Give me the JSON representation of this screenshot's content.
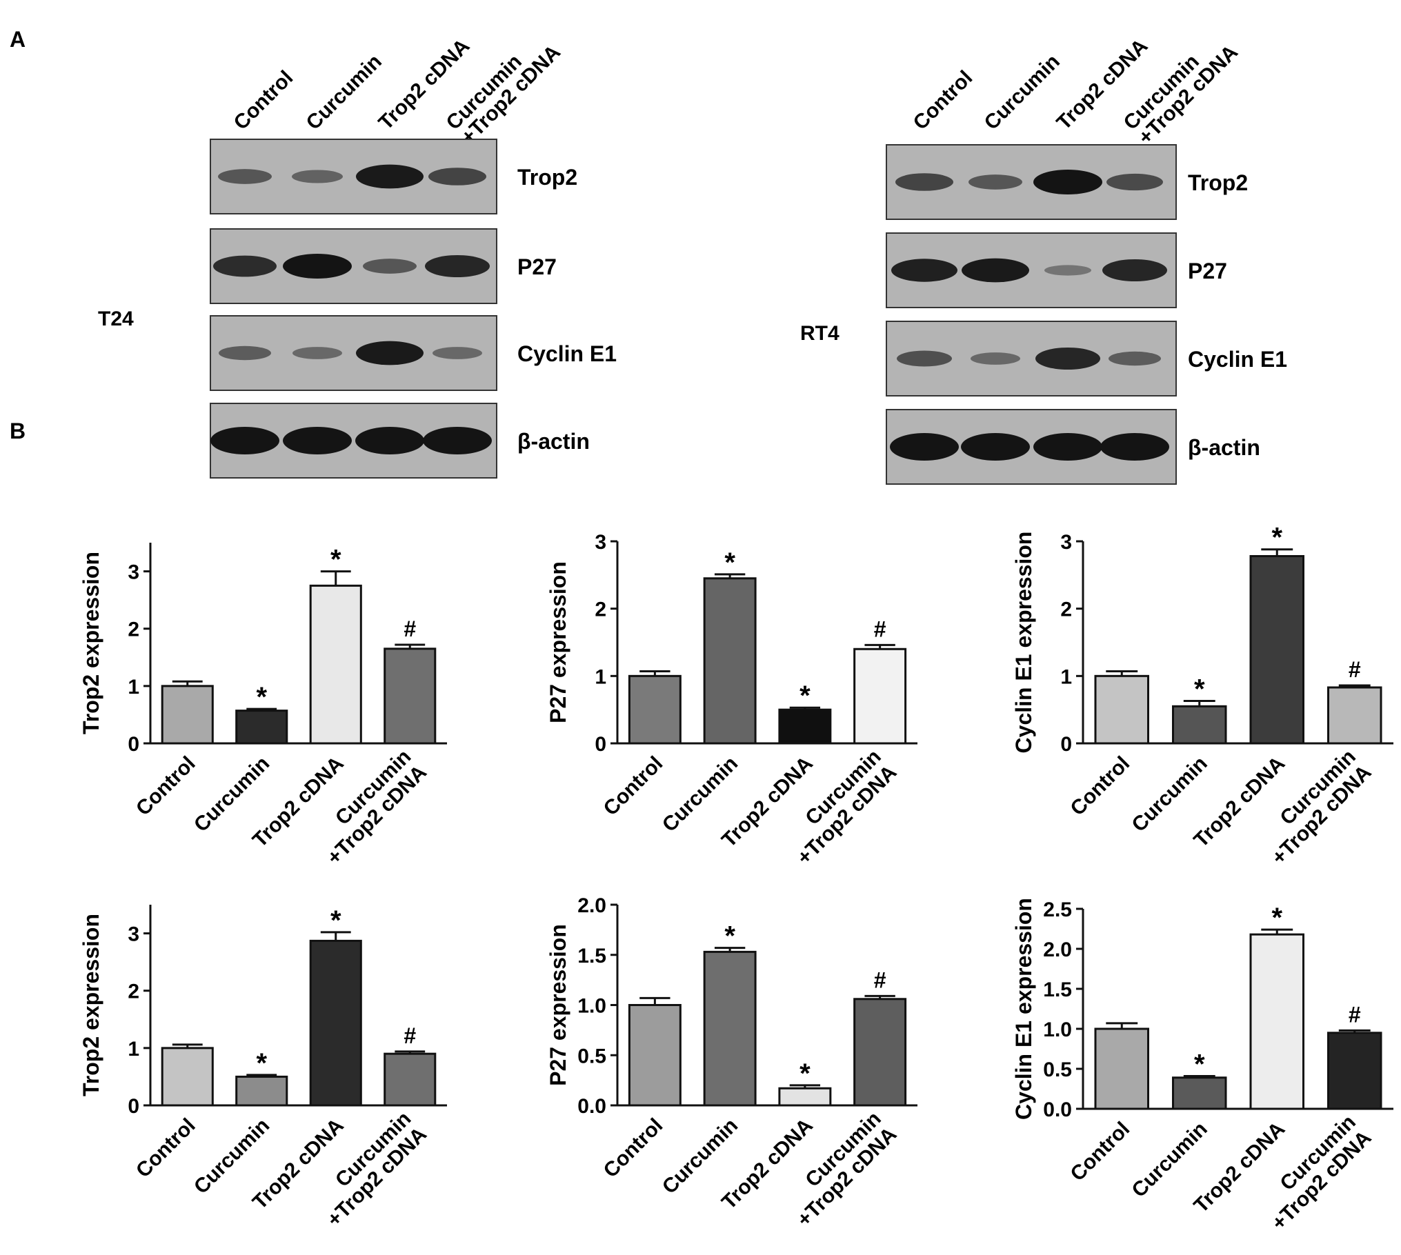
{
  "panel_labels": {
    "a": "A",
    "b": "B"
  },
  "lanes": [
    "Control",
    "Curcumin",
    "Trop2 cDNA",
    "Curcumin\n+Trop2 cDNA"
  ],
  "blots": [
    {
      "cell_line": "T24",
      "rows": [
        {
          "label": "Trop2",
          "intensity": [
            0.45,
            0.35,
            0.95,
            0.6
          ]
        },
        {
          "label": "P27",
          "intensity": [
            0.8,
            1.0,
            0.45,
            0.85
          ]
        },
        {
          "label": "Cyclin E1",
          "intensity": [
            0.4,
            0.3,
            0.95,
            0.3
          ]
        },
        {
          "label": "β-actin",
          "intensity": [
            1.0,
            1.0,
            1.0,
            1.0
          ]
        }
      ]
    },
    {
      "cell_line": "RT4",
      "rows": [
        {
          "label": "Trop2",
          "intensity": [
            0.6,
            0.45,
            1.0,
            0.55
          ]
        },
        {
          "label": "P27",
          "intensity": [
            0.9,
            0.95,
            0.2,
            0.85
          ]
        },
        {
          "label": "Cyclin E1",
          "intensity": [
            0.5,
            0.3,
            0.85,
            0.4
          ]
        },
        {
          "label": "β-actin",
          "intensity": [
            1.0,
            1.0,
            1.0,
            1.0
          ]
        }
      ]
    }
  ],
  "colors": {
    "blot_bg": "#b4b4b4",
    "band": "#141414",
    "axis": "#111111"
  },
  "chart_data": [
    {
      "type": "bar",
      "categories": [
        "Control",
        "Curcumin",
        "Trop2 cDNA",
        "Curcumin\n+Trop2 cDNA"
      ],
      "values": [
        1.0,
        0.57,
        2.75,
        1.65
      ],
      "errors": [
        0.08,
        0.03,
        0.25,
        0.07
      ],
      "markers": [
        "",
        "*",
        "*",
        "#"
      ],
      "bar_colors": [
        "#a9a9a9",
        "#2b2b2b",
        "#e8e8e8",
        "#6f6f6f"
      ],
      "ylabel": "Trop2  expression",
      "ylim": [
        0,
        3.5
      ],
      "yticks": [
        0,
        1,
        2,
        3
      ],
      "ytick_labels": [
        "0",
        "1",
        "2",
        "3"
      ]
    },
    {
      "type": "bar",
      "categories": [
        "Control",
        "Curcumin",
        "Trop2 cDNA",
        "Curcumin\n+Trop2 cDNA"
      ],
      "values": [
        1.0,
        2.45,
        0.5,
        1.4
      ],
      "errors": [
        0.07,
        0.06,
        0.03,
        0.06
      ],
      "markers": [
        "",
        "*",
        "*",
        "#"
      ],
      "bar_colors": [
        "#7a7a7a",
        "#656565",
        "#101010",
        "#f2f2f2"
      ],
      "ylabel": "P27  expression",
      "ylim": [
        0,
        3
      ],
      "yticks": [
        0,
        1,
        2,
        3
      ],
      "ytick_labels": [
        "0",
        "1",
        "2",
        "3"
      ]
    },
    {
      "type": "bar",
      "categories": [
        "Control",
        "Curcumin",
        "Trop2 cDNA",
        "Curcumin\n+Trop2 cDNA"
      ],
      "values": [
        1.0,
        0.55,
        2.78,
        0.83
      ],
      "errors": [
        0.07,
        0.08,
        0.1,
        0.03
      ],
      "markers": [
        "",
        "*",
        "*",
        "#"
      ],
      "bar_colors": [
        "#c4c4c4",
        "#555555",
        "#3c3c3c",
        "#b8b8b8"
      ],
      "ylabel": "Cyclin E1 expression",
      "ylim": [
        0,
        3
      ],
      "yticks": [
        0,
        1,
        2,
        3
      ],
      "ytick_labels": [
        "0",
        "1",
        "2",
        "3"
      ]
    },
    {
      "type": "bar",
      "categories": [
        "Control",
        "Curcumin",
        "Trop2 cDNA",
        "Curcumin\n+Trop2 cDNA"
      ],
      "values": [
        1.0,
        0.5,
        2.87,
        0.9
      ],
      "errors": [
        0.06,
        0.03,
        0.15,
        0.04
      ],
      "markers": [
        "",
        "*",
        "*",
        "#"
      ],
      "bar_colors": [
        "#c4c4c4",
        "#8c8c8c",
        "#2b2b2b",
        "#6f6f6f"
      ],
      "ylabel": "Trop2  expression",
      "ylim": [
        0,
        3.5
      ],
      "yticks": [
        0,
        1,
        2,
        3
      ],
      "ytick_labels": [
        "0",
        "1",
        "2",
        "3"
      ]
    },
    {
      "type": "bar",
      "categories": [
        "Control",
        "Curcumin",
        "Trop2 cDNA",
        "Curcumin\n+Trop2 cDNA"
      ],
      "values": [
        1.0,
        1.53,
        0.17,
        1.06
      ],
      "errors": [
        0.07,
        0.04,
        0.03,
        0.03
      ],
      "markers": [
        "",
        "*",
        "*",
        "#"
      ],
      "bar_colors": [
        "#9c9c9c",
        "#6e6e6e",
        "#e3e3e3",
        "#5e5e5e"
      ],
      "ylabel": "P27  expression",
      "ylim": [
        0,
        2
      ],
      "yticks": [
        0,
        0.5,
        1,
        1.5,
        2
      ],
      "ytick_labels": [
        "0.0",
        "0.5",
        "1.0",
        "1.5",
        "2.0"
      ]
    },
    {
      "type": "bar",
      "categories": [
        "Control",
        "Curcumin",
        "Trop2 cDNA",
        "Curcumin\n+Trop2 cDNA"
      ],
      "values": [
        1.0,
        0.39,
        2.18,
        0.95
      ],
      "errors": [
        0.07,
        0.02,
        0.06,
        0.03
      ],
      "markers": [
        "",
        "*",
        "*",
        "#"
      ],
      "bar_colors": [
        "#a9a9a9",
        "#5a5a5a",
        "#ededed",
        "#242424"
      ],
      "ylabel": "Cyclin E1 expression",
      "ylim": [
        0,
        2.5
      ],
      "yticks": [
        0,
        0.5,
        1,
        1.5,
        2,
        2.5
      ],
      "ytick_labels": [
        "0.0",
        "0.5",
        "1.0",
        "1.5",
        "2.0",
        "2.5"
      ]
    }
  ]
}
